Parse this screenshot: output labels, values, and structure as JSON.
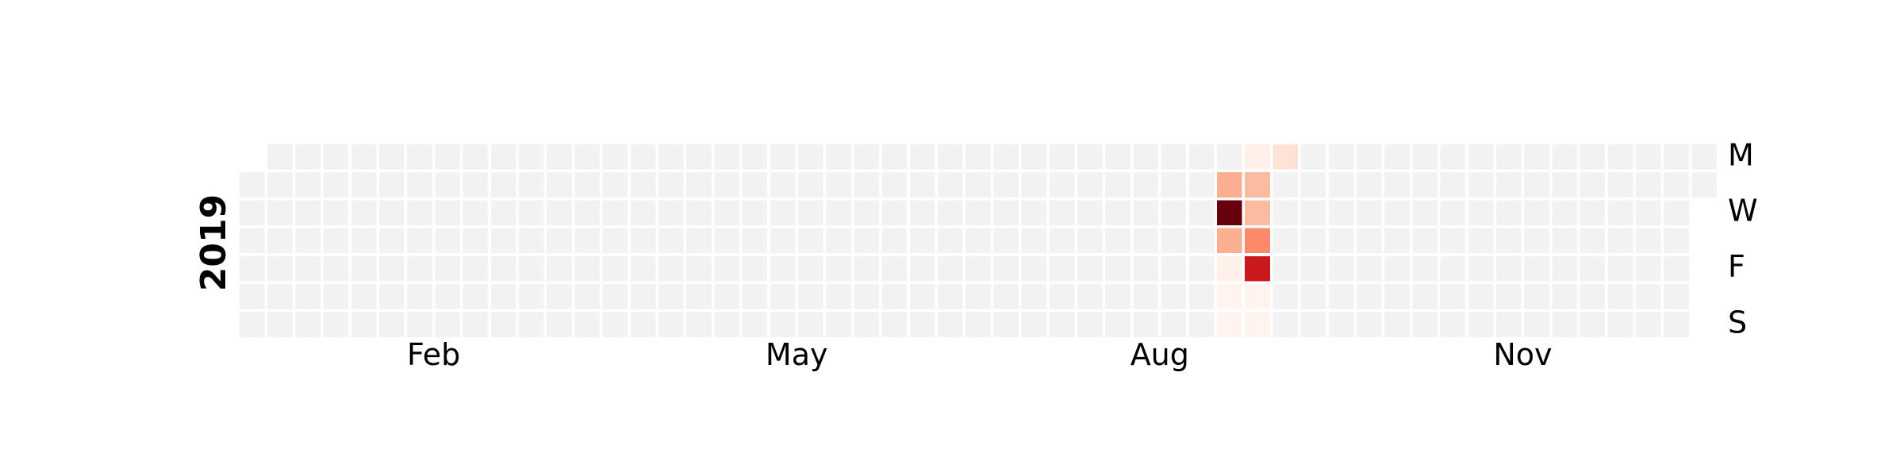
{
  "chart_data": {
    "type": "heatmap",
    "subtype": "calendar",
    "year": "2019",
    "colormap": "Reds",
    "empty_color": "#f2f2f2",
    "grid_line_color": "#ffffff",
    "day_labels": [
      "M",
      "",
      "W",
      "",
      "F",
      "",
      "S"
    ],
    "month_ticks": [
      {
        "label": "Feb",
        "week": 6.5
      },
      {
        "label": "May",
        "week": 19.5
      },
      {
        "label": "Aug",
        "week": 32.5
      },
      {
        "label": "Nov",
        "week": 45.5
      }
    ],
    "active_cells": [
      {
        "week": 35,
        "day": 1,
        "color": "#fcae91"
      },
      {
        "week": 35,
        "day": 2,
        "color": "#67000d"
      },
      {
        "week": 35,
        "day": 3,
        "color": "#fcae91"
      },
      {
        "week": 35,
        "day": 4,
        "color": "#fff0ea"
      },
      {
        "week": 35,
        "day": 5,
        "color": "#fff4ef"
      },
      {
        "week": 35,
        "day": 6,
        "color": "#fff4ef"
      },
      {
        "week": 36,
        "day": 0,
        "color": "#fff0ea"
      },
      {
        "week": 36,
        "day": 1,
        "color": "#fcbba1"
      },
      {
        "week": 36,
        "day": 2,
        "color": "#fcbba1"
      },
      {
        "week": 36,
        "day": 3,
        "color": "#fc8a6a"
      },
      {
        "week": 36,
        "day": 4,
        "color": "#cb181d"
      },
      {
        "week": 36,
        "day": 5,
        "color": "#fff4ef"
      },
      {
        "week": 36,
        "day": 6,
        "color": "#fff4ef"
      },
      {
        "week": 37,
        "day": 0,
        "color": "#fee2d5"
      }
    ]
  }
}
